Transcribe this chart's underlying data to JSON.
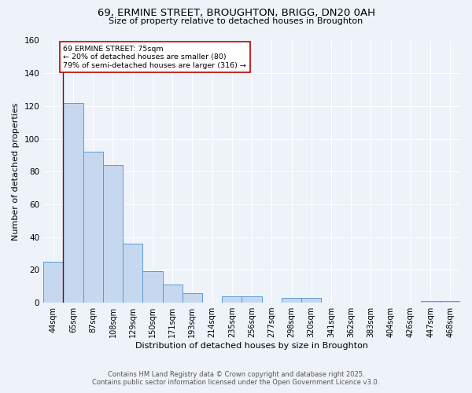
{
  "title_line1": "69, ERMINE STREET, BROUGHTON, BRIGG, DN20 0AH",
  "title_line2": "Size of property relative to detached houses in Broughton",
  "xlabel": "Distribution of detached houses by size in Broughton",
  "ylabel": "Number of detached properties",
  "categories": [
    "44sqm",
    "65sqm",
    "87sqm",
    "108sqm",
    "129sqm",
    "150sqm",
    "171sqm",
    "193sqm",
    "214sqm",
    "235sqm",
    "256sqm",
    "277sqm",
    "298sqm",
    "320sqm",
    "341sqm",
    "362sqm",
    "383sqm",
    "404sqm",
    "426sqm",
    "447sqm",
    "468sqm"
  ],
  "values": [
    25,
    122,
    92,
    84,
    36,
    19,
    11,
    6,
    0,
    4,
    4,
    0,
    3,
    3,
    0,
    0,
    0,
    0,
    0,
    1,
    1
  ],
  "bar_color": "#c5d8f0",
  "bar_edge_color": "#5b9bd5",
  "vline_x": 0.5,
  "vline_color": "#8b0000",
  "annotation_text": "69 ERMINE STREET: 75sqm\n← 20% of detached houses are smaller (80)\n79% of semi-detached houses are larger (316) →",
  "annotation_box_color": "#ffffff",
  "annotation_box_edge": "#c00000",
  "ylim": [
    0,
    160
  ],
  "yticks": [
    0,
    20,
    40,
    60,
    80,
    100,
    120,
    140,
    160
  ],
  "footer_line1": "Contains HM Land Registry data © Crown copyright and database right 2025.",
  "footer_line2": "Contains public sector information licensed under the Open Government Licence v3.0.",
  "background_color": "#eef2f9",
  "grid_color": "#ffffff"
}
